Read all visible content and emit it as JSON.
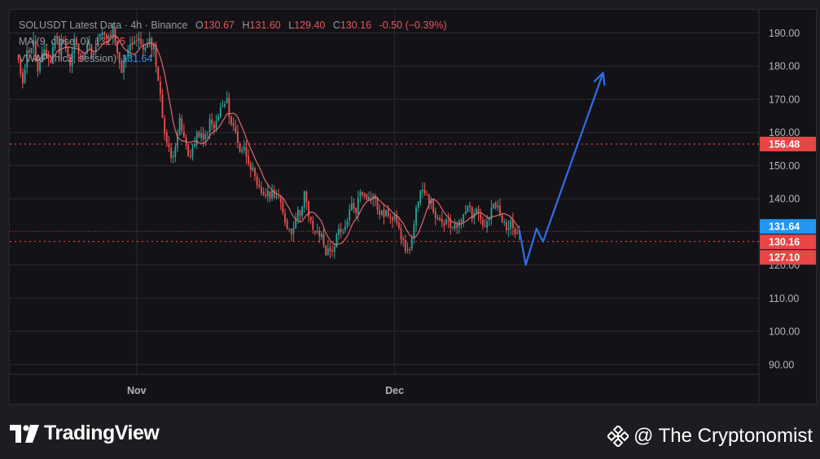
{
  "legend": {
    "symbol": "SOLUSDT Latest Data · 4h · Binance",
    "open_label": "O",
    "open": "130.67",
    "high_label": "H",
    "high": "131.60",
    "low_label": "L",
    "low": "129.40",
    "close_label": "C",
    "close": "130.16",
    "change": "-0.50 (−0.39%)",
    "ma_label": "MA (9, close, 0)",
    "ma_value": "132.05",
    "vwap_label": "VWAP (hlc3, session)",
    "vwap_value": "131.64"
  },
  "branding": {
    "logo_text": "TradingView",
    "watermark": "@ The Cryptonomist"
  },
  "colors": {
    "background": "#131217",
    "grid": "#2a2a31",
    "up": "#26a69a",
    "down": "#ef5350",
    "ma": "#f0737a",
    "projection": "#2f6ee8",
    "level": "#e84545",
    "vwap_badge": "#2196f3"
  },
  "chart_data": {
    "type": "candlestick",
    "symbol": "SOLUSDT",
    "timeframe": "4h",
    "exchange": "Binance",
    "ylim": [
      87,
      197
    ],
    "y_ticks": [
      "190.00",
      "180.00",
      "170.00",
      "160.00",
      "150.00",
      "140.00",
      "120.00",
      "110.00",
      "100.00",
      "90.00"
    ],
    "x_ticks": [
      {
        "label": "Nov",
        "index": 56
      },
      {
        "label": "Dec",
        "index": 176
      }
    ],
    "price_levels": [
      {
        "label": "156.48",
        "value": 156.48,
        "color": "#e84545"
      },
      {
        "label": "127.10",
        "value": 127.1,
        "color": "#e84545"
      }
    ],
    "price_badges": [
      {
        "label": "131.64",
        "value": 131.64,
        "color": "#2196f3",
        "kind": "VWAP"
      },
      {
        "label": "130.16",
        "value": 130.16,
        "color": "#e84545",
        "kind": "last"
      }
    ],
    "last_price_line": 130.16,
    "close_path": [
      [
        0,
        183
      ],
      [
        3,
        176
      ],
      [
        5,
        184
      ],
      [
        8,
        187
      ],
      [
        10,
        178
      ],
      [
        13,
        185
      ],
      [
        16,
        181
      ],
      [
        18,
        190
      ],
      [
        20,
        185
      ],
      [
        22,
        189
      ],
      [
        25,
        180
      ],
      [
        27,
        188
      ],
      [
        30,
        182
      ],
      [
        33,
        187
      ],
      [
        36,
        183
      ],
      [
        39,
        190
      ],
      [
        42,
        188
      ],
      [
        45,
        190
      ],
      [
        47,
        183
      ],
      [
        49,
        178
      ],
      [
        52,
        186
      ],
      [
        55,
        188
      ],
      [
        58,
        187
      ],
      [
        60,
        185
      ],
      [
        62,
        187
      ],
      [
        64,
        186
      ],
      [
        66,
        176
      ],
      [
        68,
        165
      ],
      [
        70,
        157
      ],
      [
        72,
        152
      ],
      [
        74,
        157
      ],
      [
        76,
        163
      ],
      [
        78,
        158
      ],
      [
        80,
        153
      ],
      [
        82,
        155
      ],
      [
        85,
        160
      ],
      [
        87,
        157
      ],
      [
        90,
        163
      ],
      [
        92,
        161
      ],
      [
        95,
        167
      ],
      [
        98,
        169
      ],
      [
        100,
        163
      ],
      [
        102,
        160
      ],
      [
        104,
        155
      ],
      [
        106,
        155
      ],
      [
        108,
        152
      ],
      [
        110,
        148
      ],
      [
        112,
        143
      ],
      [
        114,
        142
      ],
      [
        117,
        141
      ],
      [
        120,
        142
      ],
      [
        122,
        140
      ],
      [
        124,
        135
      ],
      [
        126,
        132
      ],
      [
        128,
        130
      ],
      [
        130,
        135
      ],
      [
        132,
        136
      ],
      [
        134,
        142
      ],
      [
        136,
        134
      ],
      [
        138,
        131
      ],
      [
        140,
        129
      ],
      [
        142,
        129
      ],
      [
        144,
        124
      ],
      [
        146,
        124
      ],
      [
        148,
        126
      ],
      [
        150,
        130
      ],
      [
        152,
        129
      ],
      [
        154,
        134
      ],
      [
        156,
        138
      ],
      [
        158,
        137
      ],
      [
        160,
        142
      ],
      [
        162,
        142
      ],
      [
        164,
        140
      ],
      [
        166,
        141
      ],
      [
        168,
        137
      ],
      [
        170,
        135
      ],
      [
        172,
        136
      ],
      [
        174,
        133
      ],
      [
        176,
        136
      ],
      [
        178,
        132
      ],
      [
        180,
        126
      ],
      [
        182,
        124
      ],
      [
        184,
        128
      ],
      [
        186,
        136
      ],
      [
        188,
        141
      ],
      [
        190,
        143
      ],
      [
        192,
        140
      ],
      [
        194,
        137
      ],
      [
        196,
        133
      ],
      [
        198,
        132
      ],
      [
        200,
        133
      ],
      [
        202,
        131
      ],
      [
        204,
        133
      ],
      [
        206,
        132
      ],
      [
        208,
        136
      ],
      [
        210,
        139
      ],
      [
        212,
        135
      ],
      [
        214,
        137
      ],
      [
        216,
        134
      ],
      [
        218,
        131
      ],
      [
        220,
        134
      ],
      [
        222,
        138
      ],
      [
        224,
        137
      ],
      [
        226,
        133
      ],
      [
        228,
        132
      ],
      [
        230,
        132
      ],
      [
        232,
        131
      ],
      [
        234,
        130.16
      ]
    ],
    "projection": [
      {
        "x": 234,
        "y": 130.5
      },
      {
        "x": 237,
        "y": 120
      },
      {
        "x": 242,
        "y": 131
      },
      {
        "x": 245,
        "y": 127
      },
      {
        "x": 273,
        "y": 178
      }
    ]
  }
}
